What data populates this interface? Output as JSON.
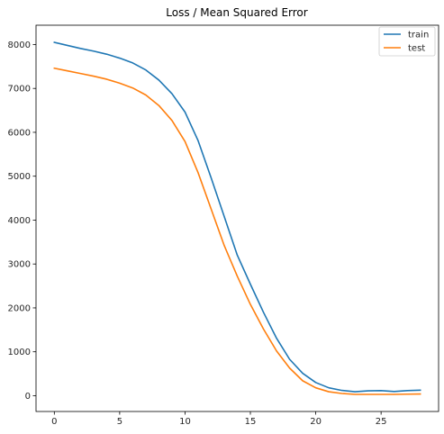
{
  "chart_data": {
    "type": "line",
    "title": "Loss / Mean Squared Error",
    "xlabel": "",
    "ylabel": "",
    "xlim": [
      -1.4,
      29.4
    ],
    "ylim": [
      -360,
      8440
    ],
    "xticks": [
      0,
      5,
      10,
      15,
      20,
      25
    ],
    "yticks": [
      0,
      1000,
      2000,
      3000,
      4000,
      5000,
      6000,
      7000,
      8000
    ],
    "grid": false,
    "legend_position": "top-right",
    "x": [
      0,
      1,
      2,
      3,
      4,
      5,
      6,
      7,
      8,
      9,
      10,
      11,
      12,
      13,
      14,
      15,
      16,
      17,
      18,
      19,
      20,
      21,
      22,
      23,
      24,
      25,
      26,
      27,
      28
    ],
    "series": [
      {
        "name": "train",
        "color": "#1f77b4",
        "values": [
          8050,
          7980,
          7910,
          7850,
          7780,
          7690,
          7580,
          7420,
          7190,
          6880,
          6460,
          5810,
          4960,
          4080,
          3200,
          2540,
          1900,
          1310,
          830,
          510,
          300,
          180,
          120,
          90,
          110,
          115,
          95,
          115,
          125
        ]
      },
      {
        "name": "test",
        "color": "#ff7f0e",
        "values": [
          7460,
          7400,
          7340,
          7280,
          7210,
          7120,
          7010,
          6850,
          6610,
          6270,
          5790,
          5080,
          4250,
          3420,
          2720,
          2080,
          1520,
          1020,
          630,
          340,
          180,
          90,
          50,
          30,
          30,
          30,
          30,
          35,
          38
        ]
      }
    ]
  }
}
